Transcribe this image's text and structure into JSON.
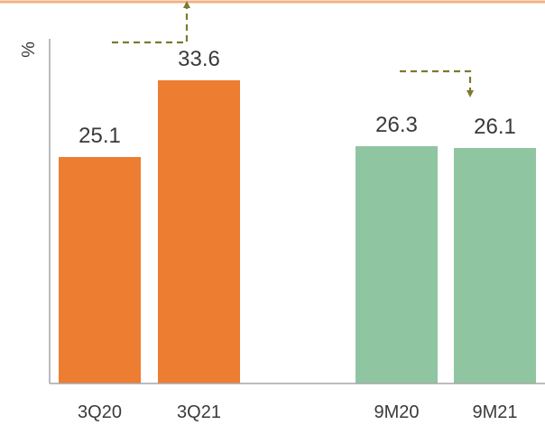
{
  "chart_data": {
    "type": "bar",
    "title": "",
    "xlabel": "",
    "ylabel": "%",
    "ylim": [
      0,
      40
    ],
    "grid": false,
    "categories": [
      "3Q20",
      "3Q21",
      "9M20",
      "9M21"
    ],
    "values": [
      25.1,
      33.6,
      26.3,
      26.1
    ],
    "value_labels": [
      "25.1",
      "33.6",
      "26.3",
      "26.1"
    ],
    "bar_colors": [
      "#ED7D31",
      "#ED7D31",
      "#8FC5A1",
      "#8FC5A1"
    ],
    "annotations": [
      {
        "type": "dashed-arrow",
        "direction": "up",
        "group": "3Q",
        "color": "#7C7A2E"
      },
      {
        "type": "dashed-arrow",
        "direction": "down",
        "group": "9M",
        "color": "#7C7A2E"
      }
    ]
  },
  "colors": {
    "header_line": "#F4B183",
    "axis": "#A6A6A6",
    "text": "#3A3A3A"
  }
}
